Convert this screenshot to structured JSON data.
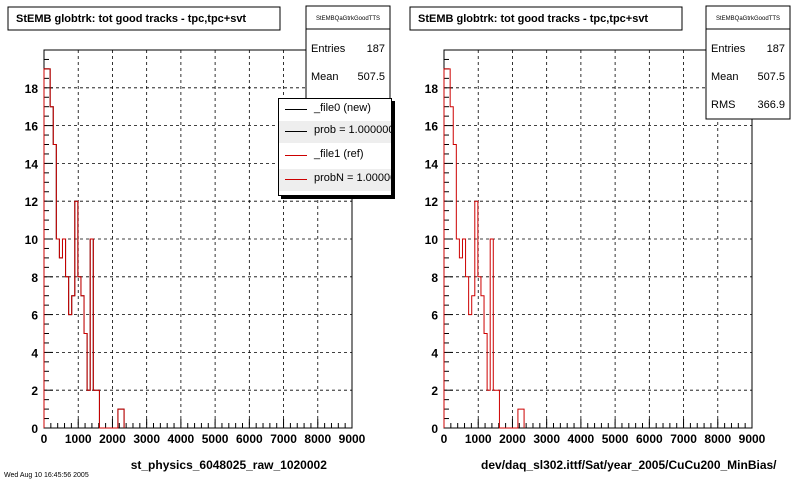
{
  "colors": {
    "new": "#000000",
    "ref": "#cc0000",
    "frame": "#000000",
    "grid": "#000000"
  },
  "footer_text": "Wed Aug 10 16:45:56 2005",
  "legend": [
    {
      "label": "_file0 (new)",
      "color": "#000000"
    },
    {
      "label": "prob = 1.000000",
      "color": "#000000"
    },
    {
      "label": "_file1 (ref)",
      "color": "#cc0000"
    },
    {
      "label": "probN = 1.000000",
      "color": "#cc0000"
    }
  ],
  "chart_data": [
    {
      "type": "histogram",
      "title": "StEMB globtrk: tot good tracks - tpc,tpc+svt",
      "xlabel": "st_physics_6048025_raw_1020002",
      "xlim": [
        0,
        9000
      ],
      "ylim": [
        0,
        20
      ],
      "x_ticks": [
        0,
        1000,
        2000,
        3000,
        4000,
        5000,
        6000,
        7000,
        8000,
        9000
      ],
      "y_ticks": [
        0,
        2,
        4,
        6,
        8,
        10,
        12,
        14,
        16,
        18
      ],
      "grid": true,
      "legend_position": "top-right",
      "stats": {
        "name": "StEMBQaGtrkGoodTTS",
        "entries": "187",
        "mean": "507.5"
      },
      "bin_width": 90,
      "series": [
        {
          "name": "_file0 (new)",
          "color": "#000000",
          "values": [
            19,
            19,
            17,
            15,
            10,
            9,
            10,
            8,
            6,
            7,
            12,
            8,
            7,
            5,
            2,
            10,
            2,
            2,
            0,
            0,
            0,
            0,
            0,
            0,
            1,
            1
          ]
        },
        {
          "name": "_file1 (ref)",
          "color": "#cc0000",
          "values": [
            19,
            19,
            17,
            15,
            10,
            9,
            10,
            8,
            6,
            7,
            12,
            8,
            7,
            5,
            2,
            10,
            2,
            2,
            0,
            0,
            0,
            0,
            0,
            0,
            1,
            1
          ]
        }
      ]
    },
    {
      "type": "histogram",
      "title": "StEMB globtrk: tot good tracks - tpc,tpc+svt",
      "xlabel": "dev/daq_sl302.ittf/Sat/year_2005/CuCu200_MinBias/",
      "xlim": [
        0,
        9000
      ],
      "ylim": [
        0,
        20
      ],
      "x_ticks": [
        0,
        1000,
        2000,
        3000,
        4000,
        5000,
        6000,
        7000,
        8000,
        9000
      ],
      "y_ticks": [
        0,
        2,
        4,
        6,
        8,
        10,
        12,
        14,
        16,
        18
      ],
      "grid": true,
      "stats": {
        "name": "StEMBQaGtrkGoodTTS",
        "entries": "187",
        "mean": "507.5",
        "rms": "366.9"
      },
      "bin_width": 90,
      "series": [
        {
          "name": "",
          "color": "#cc0000",
          "values": [
            19,
            19,
            17,
            15,
            10,
            9,
            10,
            8,
            6,
            7,
            12,
            8,
            7,
            5,
            2,
            10,
            2,
            2,
            0,
            0,
            0,
            0,
            0,
            0,
            1,
            1
          ]
        }
      ]
    }
  ]
}
